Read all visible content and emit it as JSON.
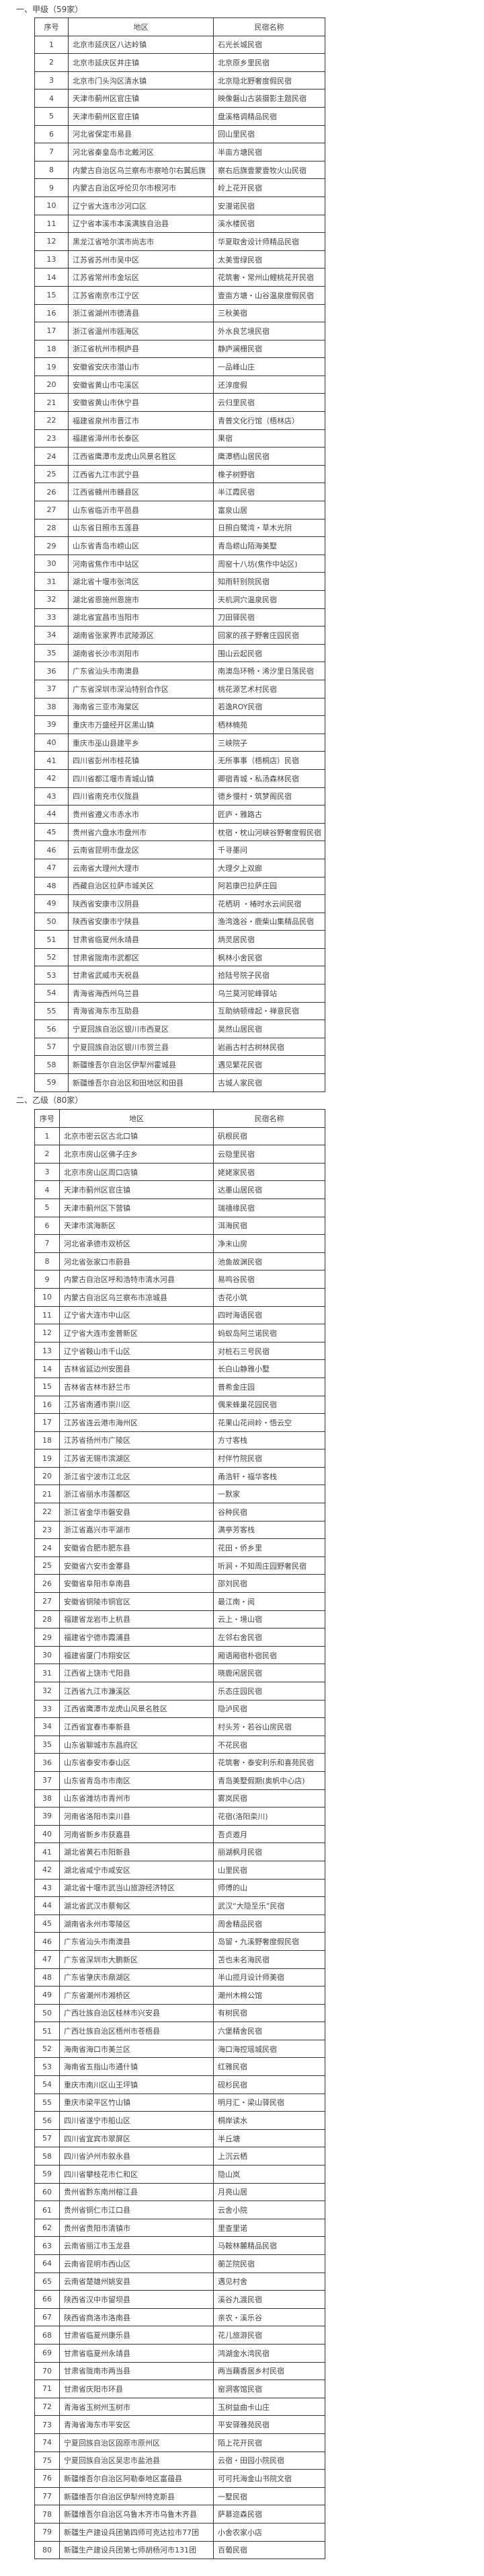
{
  "section1": {
    "title": "一、甲级（59家）",
    "headers": [
      "序号",
      "地区",
      "民宿名称"
    ],
    "rows": [
      [
        "1",
        "北京市延庆区八达岭镇",
        "石光长城民宿"
      ],
      [
        "2",
        "北京市延庆区井庄镇",
        "北京原乡里民宿"
      ],
      [
        "3",
        "北京市门头沟区清水镇",
        "北京隐北野奢度假民宿"
      ],
      [
        "4",
        "天津市蓟州区官庄镇",
        "映像磐山古装摄影主题民宿"
      ],
      [
        "5",
        "天津市蓟州区官庄镇",
        "盘溪格调精品民宿"
      ],
      [
        "6",
        "河北省保定市易县",
        "回山里民宿"
      ],
      [
        "7",
        "河北省秦皇岛市北戴河区",
        "半亩方塘民宿"
      ],
      [
        "8",
        "内蒙古自治区乌兰察布市察哈尔右翼后旗",
        "察右后旗壹蒙壹牧火山民宿"
      ],
      [
        "9",
        "内蒙古自治区呼伦贝尔市根河市",
        "岭上花开民宿"
      ],
      [
        "10",
        "辽宁省大连市沙河口区",
        "安漫诺民宿"
      ],
      [
        "11",
        "辽宁省本溪市本溪满族自治县",
        "溪水楼民宿"
      ],
      [
        "12",
        "黑龙江省哈尔滨市尚志市",
        "华夏取舍设计师精品民宿"
      ],
      [
        "13",
        "江苏省苏州市吴中区",
        "太美雪绿民宿"
      ],
      [
        "14",
        "江苏省常州市金坛区",
        "花筑奢・常州山鲤桃花开民宿"
      ],
      [
        "15",
        "江苏省南京市江宁区",
        "壹亩方塘・山谷温泉度假民宿"
      ],
      [
        "16",
        "浙江省湖州市德清县",
        "三秋美宿"
      ],
      [
        "17",
        "浙江省温州市瓯海区",
        "外水良艺境民宿"
      ],
      [
        "18",
        "浙江省杭州市桐庐县",
        "静庐澜栅民宿"
      ],
      [
        "19",
        "安徽省安庆市潜山市",
        "一品峰山庄"
      ],
      [
        "20",
        "安徽省黄山市屯溪区",
        "还淳度假"
      ],
      [
        "21",
        "安徽省黄山市休宁县",
        "云归里民宿"
      ],
      [
        "22",
        "福建省泉州市晋江市",
        "青普文化行馆（梧林店）"
      ],
      [
        "23",
        "福建省漳州市长泰区",
        "果宿"
      ],
      [
        "24",
        "江西省鹰潭市龙虎山风景名胜区",
        "鹰潭栖山居民宿"
      ],
      [
        "25",
        "江西省九江市武宁县",
        "橡子树野宿"
      ],
      [
        "26",
        "江西省赣州市赣县区",
        "半江霞民宿"
      ],
      [
        "27",
        "山东省临沂市平邑县",
        "富泉山居"
      ],
      [
        "28",
        "山东省日照市五莲县",
        "日照白鹭湾・草木光阴"
      ],
      [
        "29",
        "山东省青岛市崂山区",
        "青岛崂山陌海美墅"
      ],
      [
        "30",
        "河南省焦作市中站区",
        "周窑十八坊(焦作中站区)"
      ],
      [
        "31",
        "湖北省十堰市张湾区",
        "知雨轩别院民宿"
      ],
      [
        "32",
        "湖北省恩施州恩施市",
        "天机洞穴温泉民宿"
      ],
      [
        "33",
        "湖北省宜昌市当阳市",
        "刀田驿民宿"
      ],
      [
        "34",
        "湖南省张家界市武陵源区",
        "回家的孩子野奢庄园民宿"
      ],
      [
        "35",
        "湖南省长沙市浏阳市",
        "围山云起民宿"
      ],
      [
        "36",
        "广东省汕头市南澳县",
        "南澳岛环畅・浠汐里日落民宿"
      ],
      [
        "37",
        "广东省深圳市深汕特别合作区",
        "桃花源艺术村民宿"
      ],
      [
        "38",
        "海南省三亚市海棠区",
        "若逸ROY民宿"
      ],
      [
        "39",
        "重庆市万盛经开区黑山镇",
        "栖林楠苑"
      ],
      [
        "40",
        "重庆市巫山县建平乡",
        "三峡院子"
      ],
      [
        "41",
        "四川省彭州市桂花镇",
        "无所事事（梧桐店）民宿"
      ],
      [
        "42",
        "四川省都江堰市青城山镇",
        "卿宿青城・私汤森林民宿"
      ],
      [
        "43",
        "四川省南充市仪陇县",
        "德乡慢村・筑梦阁民宿"
      ],
      [
        "44",
        "贵州省遵义市赤水市",
        "匠庐・雅路古"
      ],
      [
        "45",
        "贵州省六盘水市盘州市",
        "枕宿・枕山河峡谷野奢度假民宿"
      ],
      [
        "46",
        "云南省昆明市盘龙区",
        "千寻墨问"
      ],
      [
        "47",
        "云南省大理州大理市",
        "大理夕上双廊"
      ],
      [
        "48",
        "西藏自治区拉萨市城关区",
        "阿若康巴拉萨庄园"
      ],
      [
        "49",
        "陕西省安康市汉阴县",
        "花栖玥 ・椿时水云间民宿"
      ],
      [
        "50",
        "陕西省安康市宁陕县",
        "渔湾逸谷・鹿柴山集精品民宿"
      ],
      [
        "51",
        "甘肃省临夏州永靖县",
        "炳灵居民宿"
      ],
      [
        "52",
        "甘肃省陇南市武都区",
        "枫林小舍民宿"
      ],
      [
        "53",
        "甘肃省武威市天祝县",
        "拾陆号院子民宿"
      ],
      [
        "54",
        "青海省海西州乌兰县",
        "乌兰莫河驼峰驿站"
      ],
      [
        "55",
        "青海省海东市互助县",
        "互助纳顿缘起・禅意民宿"
      ],
      [
        "56",
        "宁夏回族自治区银川市西夏区",
        "昊然山居民宿"
      ],
      [
        "57",
        "宁夏回族自治区银川市贺兰县",
        "岩画古村古树林民宿"
      ],
      [
        "58",
        "新疆维吾尔自治区伊犁州霍城县",
        "遇见繁花民宿"
      ],
      [
        "59",
        "新疆维吾尔自治区和田地区和田县",
        "古城人家民宿"
      ]
    ]
  },
  "section2": {
    "title": "二、乙级（80家）",
    "headers": [
      "序号",
      "地区",
      "民宿名称"
    ],
    "rows": [
      [
        "1",
        "北京市密云区古北口镇",
        "矾根民宿"
      ],
      [
        "2",
        "北京市房山区佛子庄乡",
        "云隐里民宿"
      ],
      [
        "3",
        "北京市房山区周口店镇",
        "姥姥家民宿"
      ],
      [
        "4",
        "天津市蓟州区官庄镇",
        "达墨山居民宿"
      ],
      [
        "5",
        "天津市蓟州区下营镇",
        "瑞禧缘民宿"
      ],
      [
        "6",
        "天津市滨海新区",
        "洱海民宿"
      ],
      [
        "7",
        "河北省承德市双桥区",
        "净末山房"
      ],
      [
        "8",
        "河北省张家口市蔚县",
        "池鱼故渊民宿"
      ],
      [
        "9",
        "内蒙古自治区呼和浩特市清水河县",
        "易鸣谷民宿"
      ],
      [
        "10",
        "内蒙古自治区乌兰察布市凉城县",
        "杏花小筑"
      ],
      [
        "11",
        "辽宁省大连市中山区",
        "四时海语民宿"
      ],
      [
        "12",
        "辽宁省大连市金普新区",
        "蚂蚁岛阿兰诺民宿"
      ],
      [
        "13",
        "辽宁省鞍山市千山区",
        "对桩石三号民宿"
      ],
      [
        "14",
        "吉林省延边州安图县",
        "长白山静雅小墅"
      ],
      [
        "15",
        "吉林省吉林市舒兰市",
        "普希金庄园"
      ],
      [
        "16",
        "江苏省南通市崇川区",
        "偶来蜂巢花园民宿"
      ],
      [
        "17",
        "江苏省连云港市海州区",
        "花果山花间岭・悟云空"
      ],
      [
        "18",
        "江苏省扬州市广陵区",
        "方寸客栈"
      ],
      [
        "19",
        "江苏省无锡市滨湖区",
        "村伴竹院民宿"
      ],
      [
        "20",
        "浙江省宁波市江北区",
        "甬浩轩・福华客栈"
      ],
      [
        "21",
        "浙江省丽水市莲都区",
        "一默家"
      ],
      [
        "22",
        "浙江省金华市磐安县",
        "谷种民宿"
      ],
      [
        "23",
        "浙江省嘉兴市平湖市",
        "满亭芳客栈"
      ],
      [
        "24",
        "安徽省合肥市肥东县",
        "花田・侨乡里"
      ],
      [
        "25",
        "安徽省六安市金寨县",
        "听涧・不知周庄园野奢民宿"
      ],
      [
        "26",
        "安徽省阜阳市阜南县",
        "邵刘民宿"
      ],
      [
        "27",
        "安徽省铜陵市铜官区",
        "最江南・阅"
      ],
      [
        "28",
        "福建省龙岩市上杭县",
        "云上・境山宿"
      ],
      [
        "29",
        "福建省宁德市霞浦县",
        "左邻右舍民宿"
      ],
      [
        "30",
        "福建省厦门市翔安区",
        "厢语厢宿朴宿民宿"
      ],
      [
        "31",
        "江西省上饶市弋阳县",
        "晓鹿闲居民宿"
      ],
      [
        "32",
        "江西省九江市濂溪区",
        "乐态庄园民宿"
      ],
      [
        "33",
        "江西省鹰潭市龙虎山风景名胜区",
        "隐泸民宿"
      ],
      [
        "34",
        "江西省宜春市奉新县",
        "村头芳・若谷山房民宿"
      ],
      [
        "35",
        "山东省聊城市东昌府区",
        "不花民宿"
      ],
      [
        "36",
        "山东省泰安市泰山区",
        "花筑奢・泰安利乐和喜苑民宿"
      ],
      [
        "37",
        "山东省青岛市市南区",
        "青岛美墅假期(奥帆中心店)"
      ],
      [
        "38",
        "山东省潍坊市青州市",
        "雾岚民宿"
      ],
      [
        "39",
        "河南省洛阳市栾川县",
        "花宿(洛阳栾川)"
      ],
      [
        "40",
        "河南省新乡市获嘉县",
        "吾贞邀月"
      ],
      [
        "41",
        "湖北省黄石市阳新县",
        "丽湖枫月民宿"
      ],
      [
        "42",
        "湖北省咸宁市咸安区",
        "山里民宿"
      ],
      [
        "43",
        "湖北省十堰市武当山旅游经济特区",
        "师傅的山"
      ],
      [
        "44",
        "湖北省武汉市蔡甸区",
        "武汉“大隐至乐”民宿"
      ],
      [
        "45",
        "湖南省永州市零陵区",
        "周舍精品民宿"
      ],
      [
        "46",
        "广东省汕头市南澳县",
        "岛留・九溪野奢度假民宿"
      ],
      [
        "47",
        "广东省深圳市大鹏新区",
        "苫也未名海民宿"
      ],
      [
        "48",
        "广东省肇庆市鼎湖区",
        "半山揽月设计师美宿"
      ],
      [
        "49",
        "广东省潮州市湘桥区",
        "潮州木棉公馆"
      ],
      [
        "50",
        "广西壮族自治区桂林市兴安县",
        "有树民宿"
      ],
      [
        "51",
        "广西壮族自治区梧州市苍梧县",
        "六堡精舍民宿"
      ],
      [
        "52",
        "海南省海口市美兰区",
        "海口海控瑶城民宿"
      ],
      [
        "53",
        "海南省五指山市通什镇",
        "红雅民宿"
      ],
      [
        "54",
        "重庆市南川区山王坪镇",
        "砚杉民宿"
      ],
      [
        "55",
        "重庆市梁平区竹山镇",
        "明月汇・梁山驿民宿"
      ],
      [
        "56",
        "四川省遂宁市船山区",
        "桐岸读水"
      ],
      [
        "57",
        "四川省宜宾市翠屏区",
        "半丘塘"
      ],
      [
        "58",
        "四川省泸州市叙永县",
        "上沉云栖"
      ],
      [
        "59",
        "四川省攀枝花市仁和区",
        "隐山岚"
      ],
      [
        "60",
        "贵州省黔东南州榕江县",
        "月亮山居"
      ],
      [
        "61",
        "贵州省铜仁市江口县",
        "云舍小院"
      ],
      [
        "62",
        "贵州省贵阳市清镇市",
        "里查里诺"
      ],
      [
        "63",
        "云南省丽江市玉龙县",
        "马鞍林麓精品民宿"
      ],
      [
        "64",
        "云南省昆明市西山区",
        "蘅芷院民宿"
      ],
      [
        "65",
        "云南省楚雄州姚安县",
        "遇见村舍"
      ],
      [
        "66",
        "陕西省汉中市留坝县",
        "溪谷九渡民宿"
      ],
      [
        "67",
        "陕西省商洛市洛南县",
        "亲农・溪乐谷"
      ],
      [
        "68",
        "甘肃省临夏州康乐县",
        "花儿旅游民宿"
      ],
      [
        "69",
        "甘肃省临夏州永靖县",
        "鸿湖金水湾民宿"
      ],
      [
        "70",
        "甘肃省陇南市两当县",
        "两当藕香居乡村民宿"
      ],
      [
        "71",
        "甘肃省庆阳市环县",
        "窑洞客馆民宿"
      ],
      [
        "72",
        "青海省玉树州玉树市",
        "玉树益曲卡山庄"
      ],
      [
        "73",
        "青海省海东市平安区",
        "平安驿雅苑民宿"
      ],
      [
        "74",
        "宁夏回族自治区固原市原州区",
        "陌上花开民宿"
      ],
      [
        "75",
        "宁夏回族自治区吴忠市盐池县",
        "云宿・田园小院民宿"
      ],
      [
        "76",
        "新疆维吾尔自治区阿勒泰地区富蕴县",
        "可可托海金山书院文宿"
      ],
      [
        "77",
        "新疆维吾尔自治区伊犁州特克斯县",
        "一墅民宿"
      ],
      [
        "78",
        "新疆维吾尔自治区乌鲁木齐市乌鲁木齐县",
        "萨慕迩森民宿"
      ],
      [
        "79",
        "新疆生产建设兵团第四师可克达拉市77团",
        "小舍农家小店"
      ],
      [
        "80",
        "新疆生产建设兵团第七师胡杨河市131团",
        "百葡民宿"
      ]
    ]
  }
}
